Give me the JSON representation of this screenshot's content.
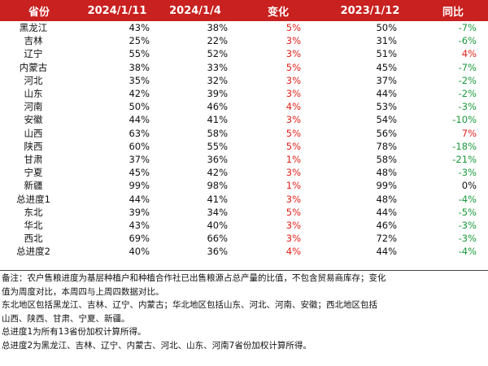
{
  "header": [
    "省份",
    "2024/1/11",
    "2024/1/4",
    "变化",
    "2023/1/12",
    "同比"
  ],
  "rows": [
    {
      "province": "黑龙江",
      "v1": "43%",
      "v2": "38%",
      "change": "5%",
      "v3": "50%",
      "yoy": "-7%",
      "yoy_color": "green"
    },
    {
      "province": "吉林",
      "v1": "25%",
      "v2": "22%",
      "change": "3%",
      "v3": "31%",
      "yoy": "-6%",
      "yoy_color": "green"
    },
    {
      "province": "辽宁",
      "v1": "55%",
      "v2": "52%",
      "change": "3%",
      "v3": "51%",
      "yoy": "4%",
      "yoy_color": "red"
    },
    {
      "province": "内蒙古",
      "v1": "38%",
      "v2": "33%",
      "change": "5%",
      "v3": "45%",
      "yoy": "-7%",
      "yoy_color": "green"
    },
    {
      "province": "河北",
      "v1": "35%",
      "v2": "32%",
      "change": "3%",
      "v3": "37%",
      "yoy": "-2%",
      "yoy_color": "green"
    },
    {
      "province": "山东",
      "v1": "42%",
      "v2": "39%",
      "change": "3%",
      "v3": "44%",
      "yoy": "-2%",
      "yoy_color": "green"
    },
    {
      "province": "河南",
      "v1": "50%",
      "v2": "46%",
      "change": "4%",
      "v3": "53%",
      "yoy": "-3%",
      "yoy_color": "green"
    },
    {
      "province": "安徽",
      "v1": "44%",
      "v2": "41%",
      "change": "3%",
      "v3": "54%",
      "yoy": "-10%",
      "yoy_color": "green"
    },
    {
      "province": "山西",
      "v1": "63%",
      "v2": "58%",
      "change": "5%",
      "v3": "56%",
      "yoy": "7%",
      "yoy_color": "red"
    },
    {
      "province": "陕西",
      "v1": "60%",
      "v2": "55%",
      "change": "5%",
      "v3": "78%",
      "yoy": "-18%",
      "yoy_color": "green"
    },
    {
      "province": "甘肃",
      "v1": "37%",
      "v2": "36%",
      "change": "1%",
      "v3": "58%",
      "yoy": "-21%",
      "yoy_color": "green"
    },
    {
      "province": "宁夏",
      "v1": "45%",
      "v2": "42%",
      "change": "3%",
      "v3": "48%",
      "yoy": "-3%",
      "yoy_color": "green"
    },
    {
      "province": "新疆",
      "v1": "99%",
      "v2": "98%",
      "change": "1%",
      "v3": "99%",
      "yoy": "0%",
      "yoy_color": "black"
    },
    {
      "province": "总进度1",
      "v1": "44%",
      "v2": "41%",
      "change": "3%",
      "v3": "48%",
      "yoy": "-4%",
      "yoy_color": "green"
    },
    {
      "province": "东北",
      "v1": "39%",
      "v2": "34%",
      "change": "5%",
      "v3": "44%",
      "yoy": "-5%",
      "yoy_color": "green"
    },
    {
      "province": "华北",
      "v1": "43%",
      "v2": "40%",
      "change": "3%",
      "v3": "46%",
      "yoy": "-3%",
      "yoy_color": "green"
    },
    {
      "province": "西北",
      "v1": "69%",
      "v2": "66%",
      "change": "3%",
      "v3": "72%",
      "yoy": "-3%",
      "yoy_color": "green"
    },
    {
      "province": "总进度2",
      "v1": "40%",
      "v2": "36%",
      "change": "4%",
      "v3": "44%",
      "yoy": "-4%",
      "yoy_color": "green"
    }
  ],
  "notes": [
    "备注：农户售粮进度为基层种植户和种植合作社已出售粮源占总产量的比值，不包含贸易商库存；变化",
    "值为周度对比，本周四与上周四数据对比。",
    "东北地区包括黑龙江、吉林、辽宁、内蒙古；华北地区包括山东、河北、河南、安徽；西北地区包括",
    "山西、陕西、甘肃、宁夏、新疆。",
    "总进度1为所有13省份加权计算所得。",
    "总进度2为黑龙江、吉林、辽宁、内蒙古、河北、山东、河南7省份加权计算所得。"
  ],
  "colors": {
    "header_bg": "#c8211f",
    "header_text": "#ffffff",
    "up": "#e2221c",
    "down": "#1a9a3b"
  }
}
